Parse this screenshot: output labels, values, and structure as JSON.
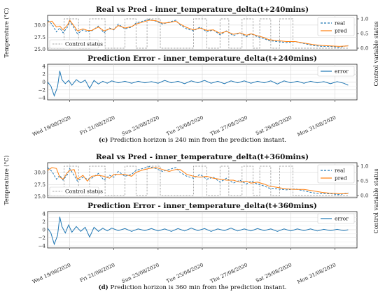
{
  "chart_data": [
    {
      "type": "line",
      "title": "Real vs Pred - inner_temperature_delta(t+240mins)",
      "ylabel": "Temperature (°C)",
      "y2label": "Control variable status",
      "ylim": [
        24.8,
        32.0
      ],
      "yticks": [
        "25.0",
        "27.5",
        "30.0"
      ],
      "y2ticks": [
        "0.0",
        "0.5",
        "1.0"
      ],
      "xlim": [
        0,
        14.0
      ],
      "grid": true,
      "legend_position": "top-right",
      "legend_bottom_left": "Control status",
      "series": [
        {
          "name": "real",
          "style": "dashed",
          "color": "#1f77b4",
          "x": [
            0,
            0.2,
            0.4,
            0.55,
            0.7,
            0.9,
            1.0,
            1.2,
            1.35,
            1.6,
            1.8,
            2.0,
            2.3,
            2.55,
            2.8,
            3.0,
            3.2,
            3.5,
            3.8,
            4.0,
            4.3,
            4.6,
            4.9,
            5.2,
            5.5,
            5.8,
            6.0,
            6.3,
            6.6,
            6.9,
            7.2,
            7.5,
            7.8,
            8.1,
            8.4,
            8.7,
            9.0,
            9.2,
            9.5,
            9.8,
            10.0,
            10.4,
            10.8,
            11.2,
            11.6,
            12.0,
            12.4,
            12.8,
            13.2,
            13.6
          ],
          "y": [
            31.0,
            30.2,
            28.6,
            29.4,
            28.4,
            29.6,
            30.8,
            29.4,
            28.2,
            29.0,
            28.6,
            28.8,
            29.8,
            28.4,
            29.4,
            29.0,
            30.2,
            29.2,
            29.6,
            30.4,
            30.8,
            31.2,
            30.8,
            30.2,
            30.6,
            31.0,
            30.0,
            29.2,
            28.8,
            29.6,
            28.6,
            29.0,
            28.0,
            28.8,
            27.8,
            28.4,
            27.6,
            28.2,
            27.6,
            27.2,
            26.8,
            26.6,
            26.4,
            26.6,
            26.2,
            25.8,
            25.6,
            25.6,
            25.4,
            25.8
          ]
        },
        {
          "name": "pred",
          "style": "solid",
          "color": "#ff7f0e",
          "x": [
            0,
            0.2,
            0.4,
            0.55,
            0.7,
            0.9,
            1.0,
            1.2,
            1.35,
            1.6,
            1.8,
            2.0,
            2.3,
            2.55,
            2.8,
            3.0,
            3.2,
            3.5,
            3.8,
            4.0,
            4.3,
            4.6,
            4.9,
            5.2,
            5.5,
            5.8,
            6.0,
            6.3,
            6.6,
            6.9,
            7.2,
            7.5,
            7.8,
            8.1,
            8.4,
            8.7,
            9.0,
            9.2,
            9.5,
            9.8,
            10.0,
            10.4,
            10.8,
            11.2,
            11.6,
            12.0,
            12.4,
            12.8,
            13.2,
            13.6
          ],
          "y": [
            30.6,
            30.8,
            29.6,
            29.8,
            29.0,
            30.0,
            31.0,
            29.8,
            28.8,
            29.2,
            28.9,
            28.9,
            29.6,
            28.8,
            29.2,
            29.1,
            29.9,
            29.4,
            29.7,
            30.2,
            30.6,
            31.0,
            30.9,
            30.4,
            30.5,
            30.8,
            30.2,
            29.5,
            29.0,
            29.4,
            28.9,
            29.0,
            28.3,
            28.7,
            28.1,
            28.4,
            27.9,
            28.2,
            27.8,
            27.4,
            27.0,
            26.8,
            26.6,
            26.6,
            26.3,
            26.0,
            25.8,
            25.7,
            25.6,
            25.7
          ]
        }
      ],
      "control_status": {
        "name": "Control status",
        "on_intervals": [
          [
            0.75,
            1.4
          ],
          [
            1.9,
            2.6
          ],
          [
            3.5,
            4.0
          ],
          [
            4.5,
            5.1
          ],
          [
            6.6,
            7.2
          ],
          [
            7.8,
            8.2
          ],
          [
            8.8,
            9.3
          ],
          [
            9.6,
            10.1
          ],
          [
            10.5,
            11.1
          ]
        ]
      }
    },
    {
      "type": "line",
      "title": "Prediction Error - inner_temperature_delta(t+240mins)",
      "ylim": [
        -4.5,
        4.5
      ],
      "yticks": [
        "4",
        "2",
        "0",
        "−2",
        "−4"
      ],
      "grid": true,
      "legend_position": "top-right",
      "series": [
        {
          "name": "error",
          "style": "solid",
          "color": "#1f77b4",
          "x": [
            0,
            0.15,
            0.3,
            0.45,
            0.55,
            0.65,
            0.8,
            0.95,
            1.1,
            1.3,
            1.5,
            1.7,
            1.9,
            2.1,
            2.3,
            2.5,
            2.7,
            2.9,
            3.2,
            3.5,
            3.8,
            4.1,
            4.4,
            4.7,
            5.0,
            5.3,
            5.6,
            5.9,
            6.2,
            6.5,
            6.8,
            7.1,
            7.4,
            7.7,
            8.0,
            8.3,
            8.6,
            8.9,
            9.2,
            9.5,
            9.8,
            10.1,
            10.4,
            10.7,
            11.0,
            11.3,
            11.6,
            11.9,
            12.2,
            12.5,
            12.8,
            13.1,
            13.4,
            13.6
          ],
          "y": [
            0.0,
            -1.0,
            -3.5,
            -1.2,
            2.8,
            0.6,
            -0.4,
            0.4,
            -0.8,
            0.6,
            -0.2,
            0.5,
            -1.6,
            0.4,
            -0.5,
            0.2,
            -0.3,
            0.3,
            -0.2,
            0.2,
            -0.3,
            0.2,
            -0.2,
            0.1,
            -0.3,
            0.4,
            -0.2,
            0.2,
            -0.4,
            0.3,
            -0.2,
            0.4,
            -0.3,
            0.2,
            -0.4,
            0.3,
            -0.2,
            0.3,
            -0.3,
            0.2,
            -0.2,
            0.3,
            -0.5,
            0.3,
            -0.2,
            0.2,
            -0.3,
            0.2,
            -0.2,
            0.1,
            -0.4,
            0.1,
            -0.3,
            -0.8
          ]
        }
      ]
    },
    {
      "type": "line",
      "title": "Real vs Pred - inner_temperature_delta(t+360mins)",
      "ylabel": "Temperature (°C)",
      "y2label": "Control variable status",
      "ylim": [
        24.8,
        32.0
      ],
      "yticks": [
        "25.0",
        "27.5",
        "30.0"
      ],
      "y2ticks": [
        "0.0",
        "0.5",
        "1.0"
      ],
      "xlim": [
        0,
        14.0
      ],
      "grid": true,
      "legend_position": "top-right",
      "legend_bottom_left": "Control status",
      "series": [
        {
          "name": "real",
          "style": "dashed",
          "color": "#1f77b4",
          "x": [
            0,
            0.2,
            0.4,
            0.55,
            0.7,
            0.9,
            1.0,
            1.2,
            1.35,
            1.6,
            1.8,
            2.0,
            2.3,
            2.55,
            2.8,
            3.0,
            3.2,
            3.5,
            3.8,
            4.0,
            4.3,
            4.6,
            4.9,
            5.2,
            5.5,
            5.8,
            6.0,
            6.3,
            6.6,
            6.9,
            7.2,
            7.5,
            7.8,
            8.1,
            8.4,
            8.7,
            9.0,
            9.2,
            9.5,
            9.8,
            10.0,
            10.4,
            10.8,
            11.2,
            11.6,
            12.0,
            12.4,
            12.8,
            13.2,
            13.6
          ],
          "y": [
            31.0,
            30.2,
            28.6,
            29.4,
            28.4,
            29.6,
            30.8,
            29.4,
            28.2,
            29.0,
            28.6,
            28.8,
            29.8,
            28.4,
            29.4,
            29.0,
            30.2,
            29.2,
            29.6,
            30.4,
            30.8,
            31.2,
            30.8,
            30.2,
            30.6,
            31.0,
            30.0,
            29.2,
            28.8,
            29.6,
            28.6,
            29.0,
            28.0,
            28.8,
            27.8,
            28.4,
            27.6,
            28.2,
            27.6,
            27.2,
            26.8,
            26.6,
            26.4,
            26.6,
            26.2,
            25.8,
            25.6,
            25.6,
            25.4,
            25.8
          ]
        },
        {
          "name": "pred",
          "style": "solid",
          "color": "#ff7f0e",
          "x": [
            0,
            0.2,
            0.4,
            0.55,
            0.7,
            0.9,
            1.0,
            1.2,
            1.35,
            1.6,
            1.8,
            2.0,
            2.3,
            2.55,
            2.8,
            3.0,
            3.2,
            3.5,
            3.8,
            4.0,
            4.3,
            4.6,
            4.9,
            5.2,
            5.5,
            5.8,
            6.0,
            6.3,
            6.6,
            6.9,
            7.2,
            7.5,
            7.8,
            8.1,
            8.4,
            8.7,
            9.0,
            9.2,
            9.5,
            9.8,
            10.0,
            10.4,
            10.8,
            11.2,
            11.6,
            12.0,
            12.4,
            12.8,
            13.2,
            13.6
          ],
          "y": [
            30.4,
            31.0,
            30.8,
            29.0,
            28.6,
            30.0,
            30.4,
            30.6,
            28.6,
            29.4,
            28.2,
            29.2,
            29.4,
            29.2,
            28.8,
            29.6,
            29.6,
            29.6,
            29.2,
            30.0,
            30.5,
            30.8,
            31.0,
            30.6,
            30.2,
            30.6,
            30.6,
            29.6,
            29.2,
            29.0,
            29.2,
            28.8,
            28.6,
            28.4,
            28.4,
            28.0,
            28.2,
            27.8,
            28.0,
            27.6,
            27.2,
            26.9,
            26.6,
            26.5,
            26.5,
            26.2,
            25.9,
            25.7,
            25.6,
            25.6
          ]
        }
      ],
      "control_status": {
        "name": "Control status",
        "on_intervals": [
          [
            0.75,
            1.4
          ],
          [
            1.9,
            2.6
          ],
          [
            3.5,
            4.0
          ],
          [
            4.5,
            5.1
          ],
          [
            6.6,
            7.2
          ],
          [
            7.8,
            8.2
          ],
          [
            8.8,
            9.3
          ],
          [
            9.6,
            10.1
          ],
          [
            10.5,
            11.1
          ]
        ]
      }
    },
    {
      "type": "line",
      "title": "Prediction Error - inner_temperature_delta(t+360mins)",
      "ylim": [
        -4.5,
        4.5
      ],
      "yticks": [
        "4",
        "2",
        "0",
        "−2",
        "−4"
      ],
      "grid": true,
      "legend_position": "top-right",
      "series": [
        {
          "name": "error",
          "style": "solid",
          "color": "#1f77b4",
          "x": [
            0,
            0.15,
            0.3,
            0.45,
            0.55,
            0.65,
            0.8,
            0.95,
            1.1,
            1.3,
            1.5,
            1.7,
            1.9,
            2.1,
            2.3,
            2.5,
            2.7,
            2.9,
            3.2,
            3.5,
            3.8,
            4.1,
            4.4,
            4.7,
            5.0,
            5.3,
            5.6,
            5.9,
            6.2,
            6.5,
            6.8,
            7.1,
            7.4,
            7.7,
            8.0,
            8.3,
            8.6,
            8.9,
            9.2,
            9.5,
            9.8,
            10.1,
            10.4,
            10.7,
            11.0,
            11.3,
            11.6,
            11.9,
            12.2,
            12.5,
            12.8,
            13.1,
            13.4,
            13.6
          ],
          "y": [
            0.4,
            -0.8,
            -3.6,
            -1.4,
            3.2,
            0.8,
            -0.8,
            1.2,
            -0.6,
            0.8,
            -0.4,
            0.6,
            -1.8,
            0.6,
            -0.4,
            0.4,
            -0.3,
            0.4,
            -0.2,
            0.3,
            -0.4,
            0.2,
            -0.2,
            0.3,
            -0.3,
            0.2,
            -0.4,
            0.3,
            -0.3,
            0.4,
            -0.2,
            0.3,
            -0.4,
            0.2,
            -0.2,
            0.4,
            -0.3,
            0.2,
            -0.3,
            0.3,
            -0.2,
            0.2,
            -0.4,
            0.2,
            -0.3,
            0.2,
            -0.2,
            0.2,
            -0.3,
            0.1,
            -0.2,
            0.1,
            -0.2,
            0.0
          ]
        }
      ]
    }
  ],
  "x_tick_labels": [
    "Wed 19/08/2020",
    "Fri 21/08/2020",
    "Sun 23/08/2020",
    "Tue 25/08/2020",
    "Thu 27/08/2020",
    "Sat 29/08/2020",
    "Mon 31/08/2020"
  ],
  "x_tick_positions": [
    1,
    3,
    5,
    7,
    9,
    11,
    13
  ],
  "captions": [
    {
      "letter": "(c)",
      "text": " Prediction horizon is 240 min from the prediction instant."
    },
    {
      "letter": "(d)",
      "text": " Prediction horizon is 360 min from the prediction instant."
    }
  ]
}
